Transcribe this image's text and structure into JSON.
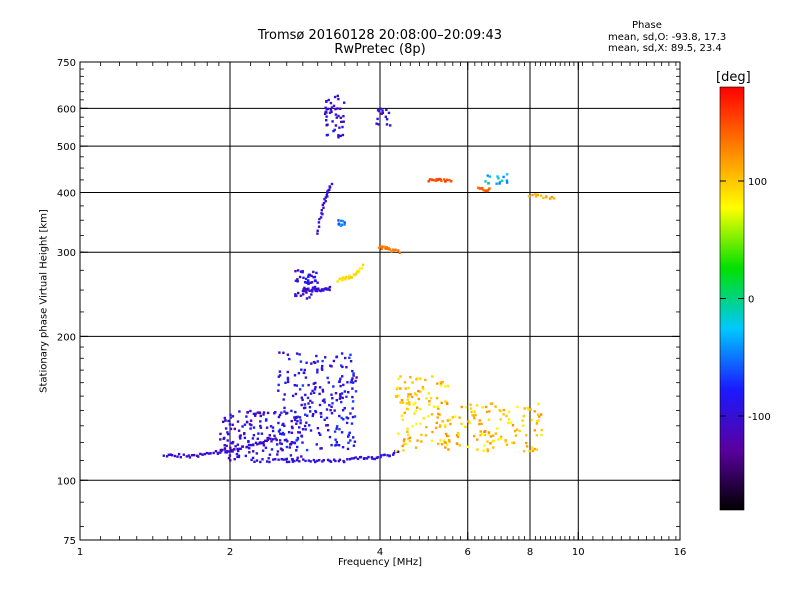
{
  "header": {
    "title_line1": "Tromsø 20160128 20:08:00–20:09:43",
    "title_line2": "RwPretec (8p)",
    "phase_heading": "Phase",
    "phase_o": "mean, sd,O:  -93.8, 17.3",
    "phase_x": "mean, sd,X:  89.5, 23.4"
  },
  "colorbar": {
    "unit": "[deg]",
    "range": [
      -180,
      180
    ],
    "ticks": [
      {
        "value": 100,
        "label": "100"
      },
      {
        "value": 0,
        "label": "0"
      },
      {
        "value": -100,
        "label": "-100"
      }
    ],
    "colors": [
      "#000000",
      "#5a00a0",
      "#1a1aff",
      "#00c8ff",
      "#00e000",
      "#ffff00",
      "#ff8000",
      "#ff0000"
    ]
  },
  "chart_data": {
    "type": "scatter",
    "xlabel": "Frequency [MHz]",
    "ylabel": "Stationary phase Virtual Height [km]",
    "xscale": "log",
    "yscale": "log",
    "xlim": [
      1,
      16
    ],
    "ylim": [
      75,
      750
    ],
    "x_ticks": [
      {
        "value": 1,
        "label": "1"
      },
      {
        "value": 2,
        "label": "2"
      },
      {
        "value": 4,
        "label": "4"
      },
      {
        "value": 6,
        "label": "6"
      },
      {
        "value": 8,
        "label": "8"
      },
      {
        "value": 10,
        "label": "10"
      },
      {
        "value": 16,
        "label": "16"
      }
    ],
    "x_grid": [
      2,
      4,
      6,
      8,
      10
    ],
    "y_ticks": [
      {
        "value": 75,
        "label": "75"
      },
      {
        "value": 100,
        "label": "100"
      },
      {
        "value": 200,
        "label": "200"
      },
      {
        "value": 300,
        "label": "300"
      },
      {
        "value": 400,
        "label": "400"
      },
      {
        "value": 500,
        "label": "500"
      },
      {
        "value": 600,
        "label": "600"
      },
      {
        "value": 750,
        "label": "750"
      }
    ],
    "y_grid": [
      100,
      200,
      300,
      400,
      500,
      600
    ],
    "grid": true,
    "series": [
      {
        "traces": [
          {
            "x": [
              1.48,
              1.55,
              1.65,
              1.75,
              1.85,
              1.95,
              2.05,
              2.15,
              2.25,
              2.35,
              2.5
            ],
            "y": [
              113,
              113,
              112,
              113,
              114,
              115,
              116,
              118,
              119,
              121,
              123
            ],
            "phase": -100
          },
          {
            "x": [
              2.2,
              2.4,
              2.6,
              2.8,
              3.0,
              3.2,
              3.4,
              3.6,
              3.8,
              4.0,
              4.2,
              4.4
            ],
            "y": [
              110,
              110,
              110,
              110,
              110,
              110,
              110,
              111,
              111,
              112,
              113,
              116
            ],
            "phase": -95
          },
          {
            "x": [
              2.8,
              2.9,
              3.0,
              3.1,
              3.2
            ],
            "y": [
              250,
              250,
              250,
              251,
              252
            ],
            "phase": -100
          },
          {
            "x": [
              3.0,
              3.05,
              3.1,
              3.15,
              3.2
            ],
            "y": [
              330,
              360,
              385,
              400,
              420
            ],
            "phase": -100
          },
          {
            "x": [
              3.3,
              3.4,
              3.5,
              3.6,
              3.7
            ],
            "y": [
              262,
              264,
              267,
              272,
              282
            ],
            "phase": 90
          },
          {
            "x": [
              4.0,
              4.1,
              4.2,
              4.4
            ],
            "y": [
              308,
              306,
              303,
              300
            ],
            "phase": 130
          },
          {
            "x": [
              5.0,
              5.2,
              5.4,
              5.6
            ],
            "y": [
              425,
              424,
              424,
              423
            ],
            "phase": 150
          },
          {
            "x": [
              6.3,
              6.5,
              6.7
            ],
            "y": [
              408,
              406,
              405
            ],
            "phase": 140
          },
          {
            "x": [
              8.0,
              8.5,
              9.0
            ],
            "y": [
              395,
              392,
              390
            ],
            "phase": 110
          }
        ]
      },
      {
        "clusters": [
          {
            "x": [
              1.9,
              2.8
            ],
            "y": [
              110,
              140
            ],
            "phase": -100,
            "n": 160
          },
          {
            "x": [
              2.5,
              3.6
            ],
            "y": [
              115,
              185
            ],
            "phase": -90,
            "n": 220
          },
          {
            "x": [
              2.7,
              3.0
            ],
            "y": [
              240,
              275
            ],
            "phase": -100,
            "n": 50
          },
          {
            "x": [
              3.1,
              3.4
            ],
            "y": [
              520,
              640
            ],
            "phase": -100,
            "n": 45
          },
          {
            "x": [
              3.9,
              4.2
            ],
            "y": [
              550,
              600
            ],
            "phase": -100,
            "n": 15
          },
          {
            "x": [
              4.3,
              5.5
            ],
            "y": [
              115,
              165
            ],
            "phase": 100,
            "n": 120
          },
          {
            "x": [
              5.5,
              8.5
            ],
            "y": [
              115,
              145
            ],
            "phase": 100,
            "n": 120
          },
          {
            "x": [
              3.3,
              3.4
            ],
            "y": [
              340,
              350
            ],
            "phase": -40,
            "n": 10
          },
          {
            "x": [
              6.5,
              7.2
            ],
            "y": [
              415,
              440
            ],
            "phase": -30,
            "n": 15
          }
        ]
      }
    ]
  }
}
